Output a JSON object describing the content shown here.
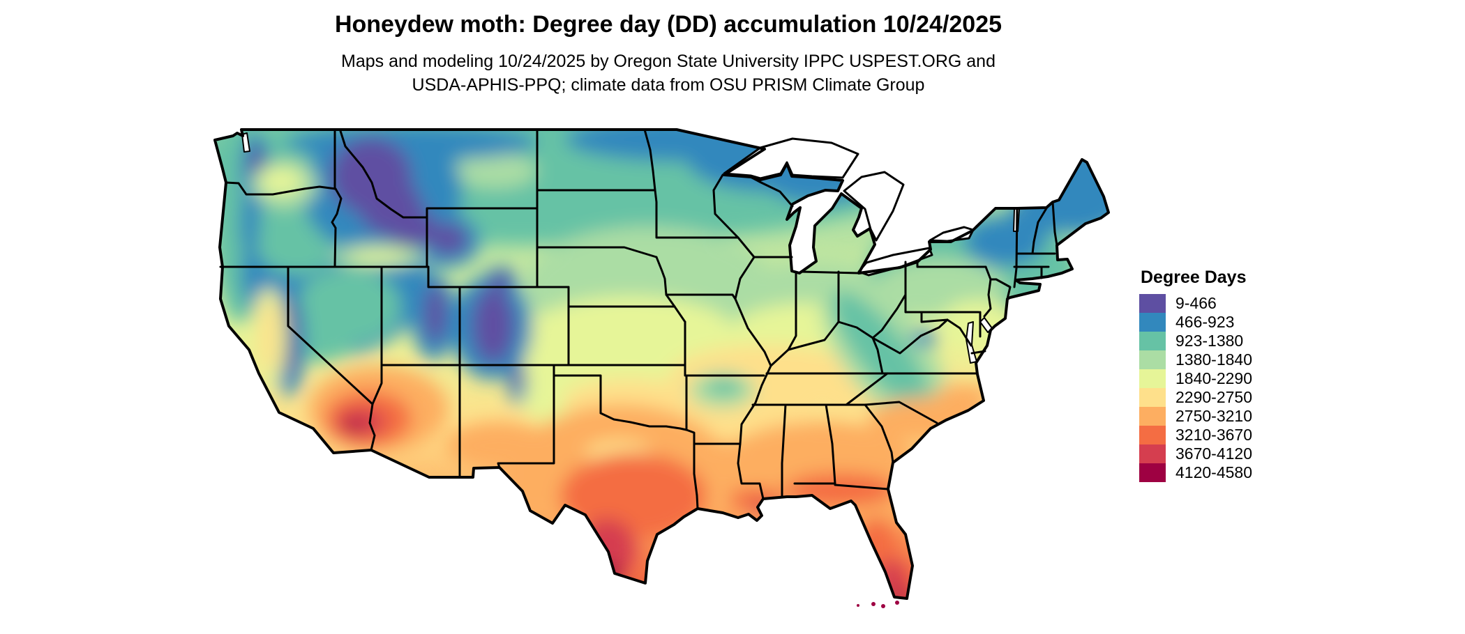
{
  "header": {
    "title": "Honeydew moth: Degree day (DD) accumulation 10/24/2025",
    "subtitle_lines": [
      "Maps and modeling 10/24/2025 by Oregon State University IPPC USPEST.ORG and",
      "USDA-APHIS-PPQ; climate data from OSU PRISM Climate Group"
    ]
  },
  "legend": {
    "title": "Degree Days",
    "entries": [
      {
        "range": "9-466",
        "color": "#5e4fa2"
      },
      {
        "range": "466-923",
        "color": "#3288bd"
      },
      {
        "range": "923-1380",
        "color": "#66c2a5"
      },
      {
        "range": "1380-1840",
        "color": "#abdda4"
      },
      {
        "range": "1840-2290",
        "color": "#e6f598"
      },
      {
        "range": "2290-2750",
        "color": "#fee08b"
      },
      {
        "range": "2750-3210",
        "color": "#fdae61"
      },
      {
        "range": "3210-3670",
        "color": "#f46d43"
      },
      {
        "range": "3670-4120",
        "color": "#d53e4f"
      },
      {
        "range": "4120-4580",
        "color": "#9e0142"
      }
    ]
  },
  "map": {
    "region": "Contiguous United States",
    "value_shown": "Degree day (DD) accumulation",
    "state_border_color": "#000000",
    "no_data_color": "#ffffff"
  }
}
